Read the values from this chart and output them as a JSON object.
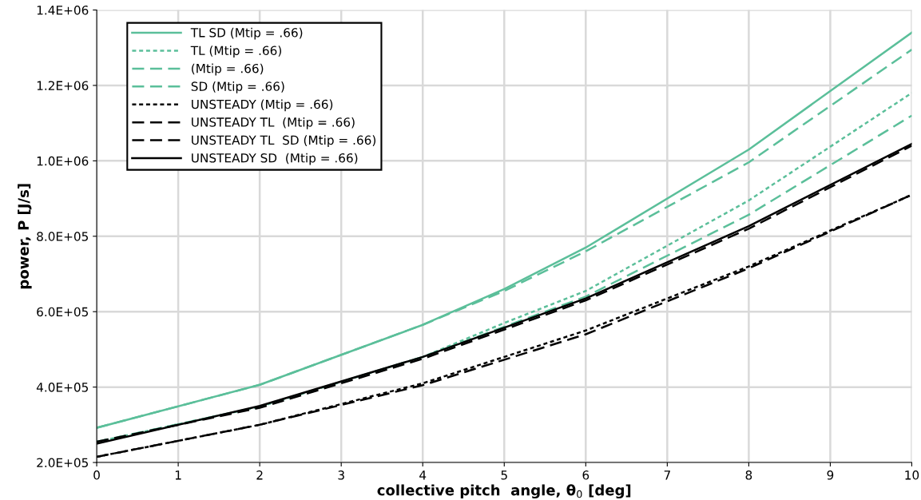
{
  "chart_data": {
    "type": "line",
    "xlabel": "collective pitch  angle, θ$_{0}$ [deg]",
    "ylabel": "power, P [J/s]",
    "xlim": [
      0,
      10
    ],
    "xticks": [
      0,
      1,
      2,
      3,
      4,
      5,
      6,
      7,
      8,
      9,
      10
    ],
    "ylim": [
      200000,
      1400000
    ],
    "yticks": [
      {
        "value": 200000,
        "label": "2.0E+05"
      },
      {
        "value": 400000,
        "label": "4.0E+05"
      },
      {
        "value": 600000,
        "label": "6.0E+05"
      },
      {
        "value": 800000,
        "label": "8.0E+05"
      },
      {
        "value": 1000000,
        "label": "1.0E+06"
      },
      {
        "value": 1200000,
        "label": "1.2E+06"
      },
      {
        "value": 1400000,
        "label": "1.4E+06"
      }
    ],
    "grid": true,
    "legend": "top left",
    "marker": "none",
    "series": [
      {
        "name": "TL SD (Mtip = .66)",
        "color": "#5bbf9a",
        "line_style": "solid",
        "x": [
          0,
          2,
          4,
          5,
          6,
          8,
          10
        ],
        "values": [
          292000,
          406000,
          565000,
          660000,
          770000,
          1030000,
          1340000
        ]
      },
      {
        "name": "TL (Mtip = .66)",
        "color": "#5bbf9a",
        "line_style": "dotted",
        "x": [
          0,
          2,
          4,
          5,
          6,
          8,
          10
        ],
        "values": [
          255000,
          348000,
          480000,
          570000,
          655000,
          895000,
          1180000
        ]
      },
      {
        "name": "(Mtip = .66)",
        "color": "#5bbf9a",
        "line_style": "dashed",
        "x": [
          0,
          2,
          4,
          5,
          6,
          8,
          10
        ],
        "values": [
          255000,
          348000,
          480000,
          560000,
          640000,
          857000,
          1120000
        ]
      },
      {
        "name": "SD (Mtip = .66)",
        "color": "#5bbf9a",
        "line_style": "dashed",
        "x": [
          0,
          2,
          4,
          5,
          6,
          8,
          10
        ],
        "values": [
          292000,
          406000,
          565000,
          655000,
          760000,
          996000,
          1295000
        ]
      },
      {
        "name": "UNSTEADY (Mtip = .66)",
        "color": "#000000",
        "line_style": "dotted",
        "x": [
          0,
          2,
          4,
          6,
          8,
          10
        ],
        "values": [
          215000,
          300000,
          410000,
          550000,
          720000,
          910000
        ]
      },
      {
        "name": "UNSTEADY TL  (Mtip = .66)",
        "color": "#000000",
        "line_style": "dashed",
        "x": [
          0,
          2,
          4,
          6,
          8,
          10
        ],
        "values": [
          215000,
          300000,
          405000,
          540000,
          715000,
          910000
        ]
      },
      {
        "name": "UNSTEADY TL  SD (Mtip = .66)",
        "color": "#000000",
        "line_style": "dashed",
        "x": [
          0,
          2,
          4,
          6,
          8,
          10
        ],
        "values": [
          255000,
          345000,
          475000,
          630000,
          820000,
          1040000
        ]
      },
      {
        "name": "UNSTEADY SD  (Mtip = .66)",
        "color": "#000000",
        "line_style": "solid",
        "x": [
          0,
          2,
          4,
          6,
          8,
          10
        ],
        "values": [
          250000,
          350000,
          480000,
          635000,
          827000,
          1045000
        ]
      }
    ]
  }
}
